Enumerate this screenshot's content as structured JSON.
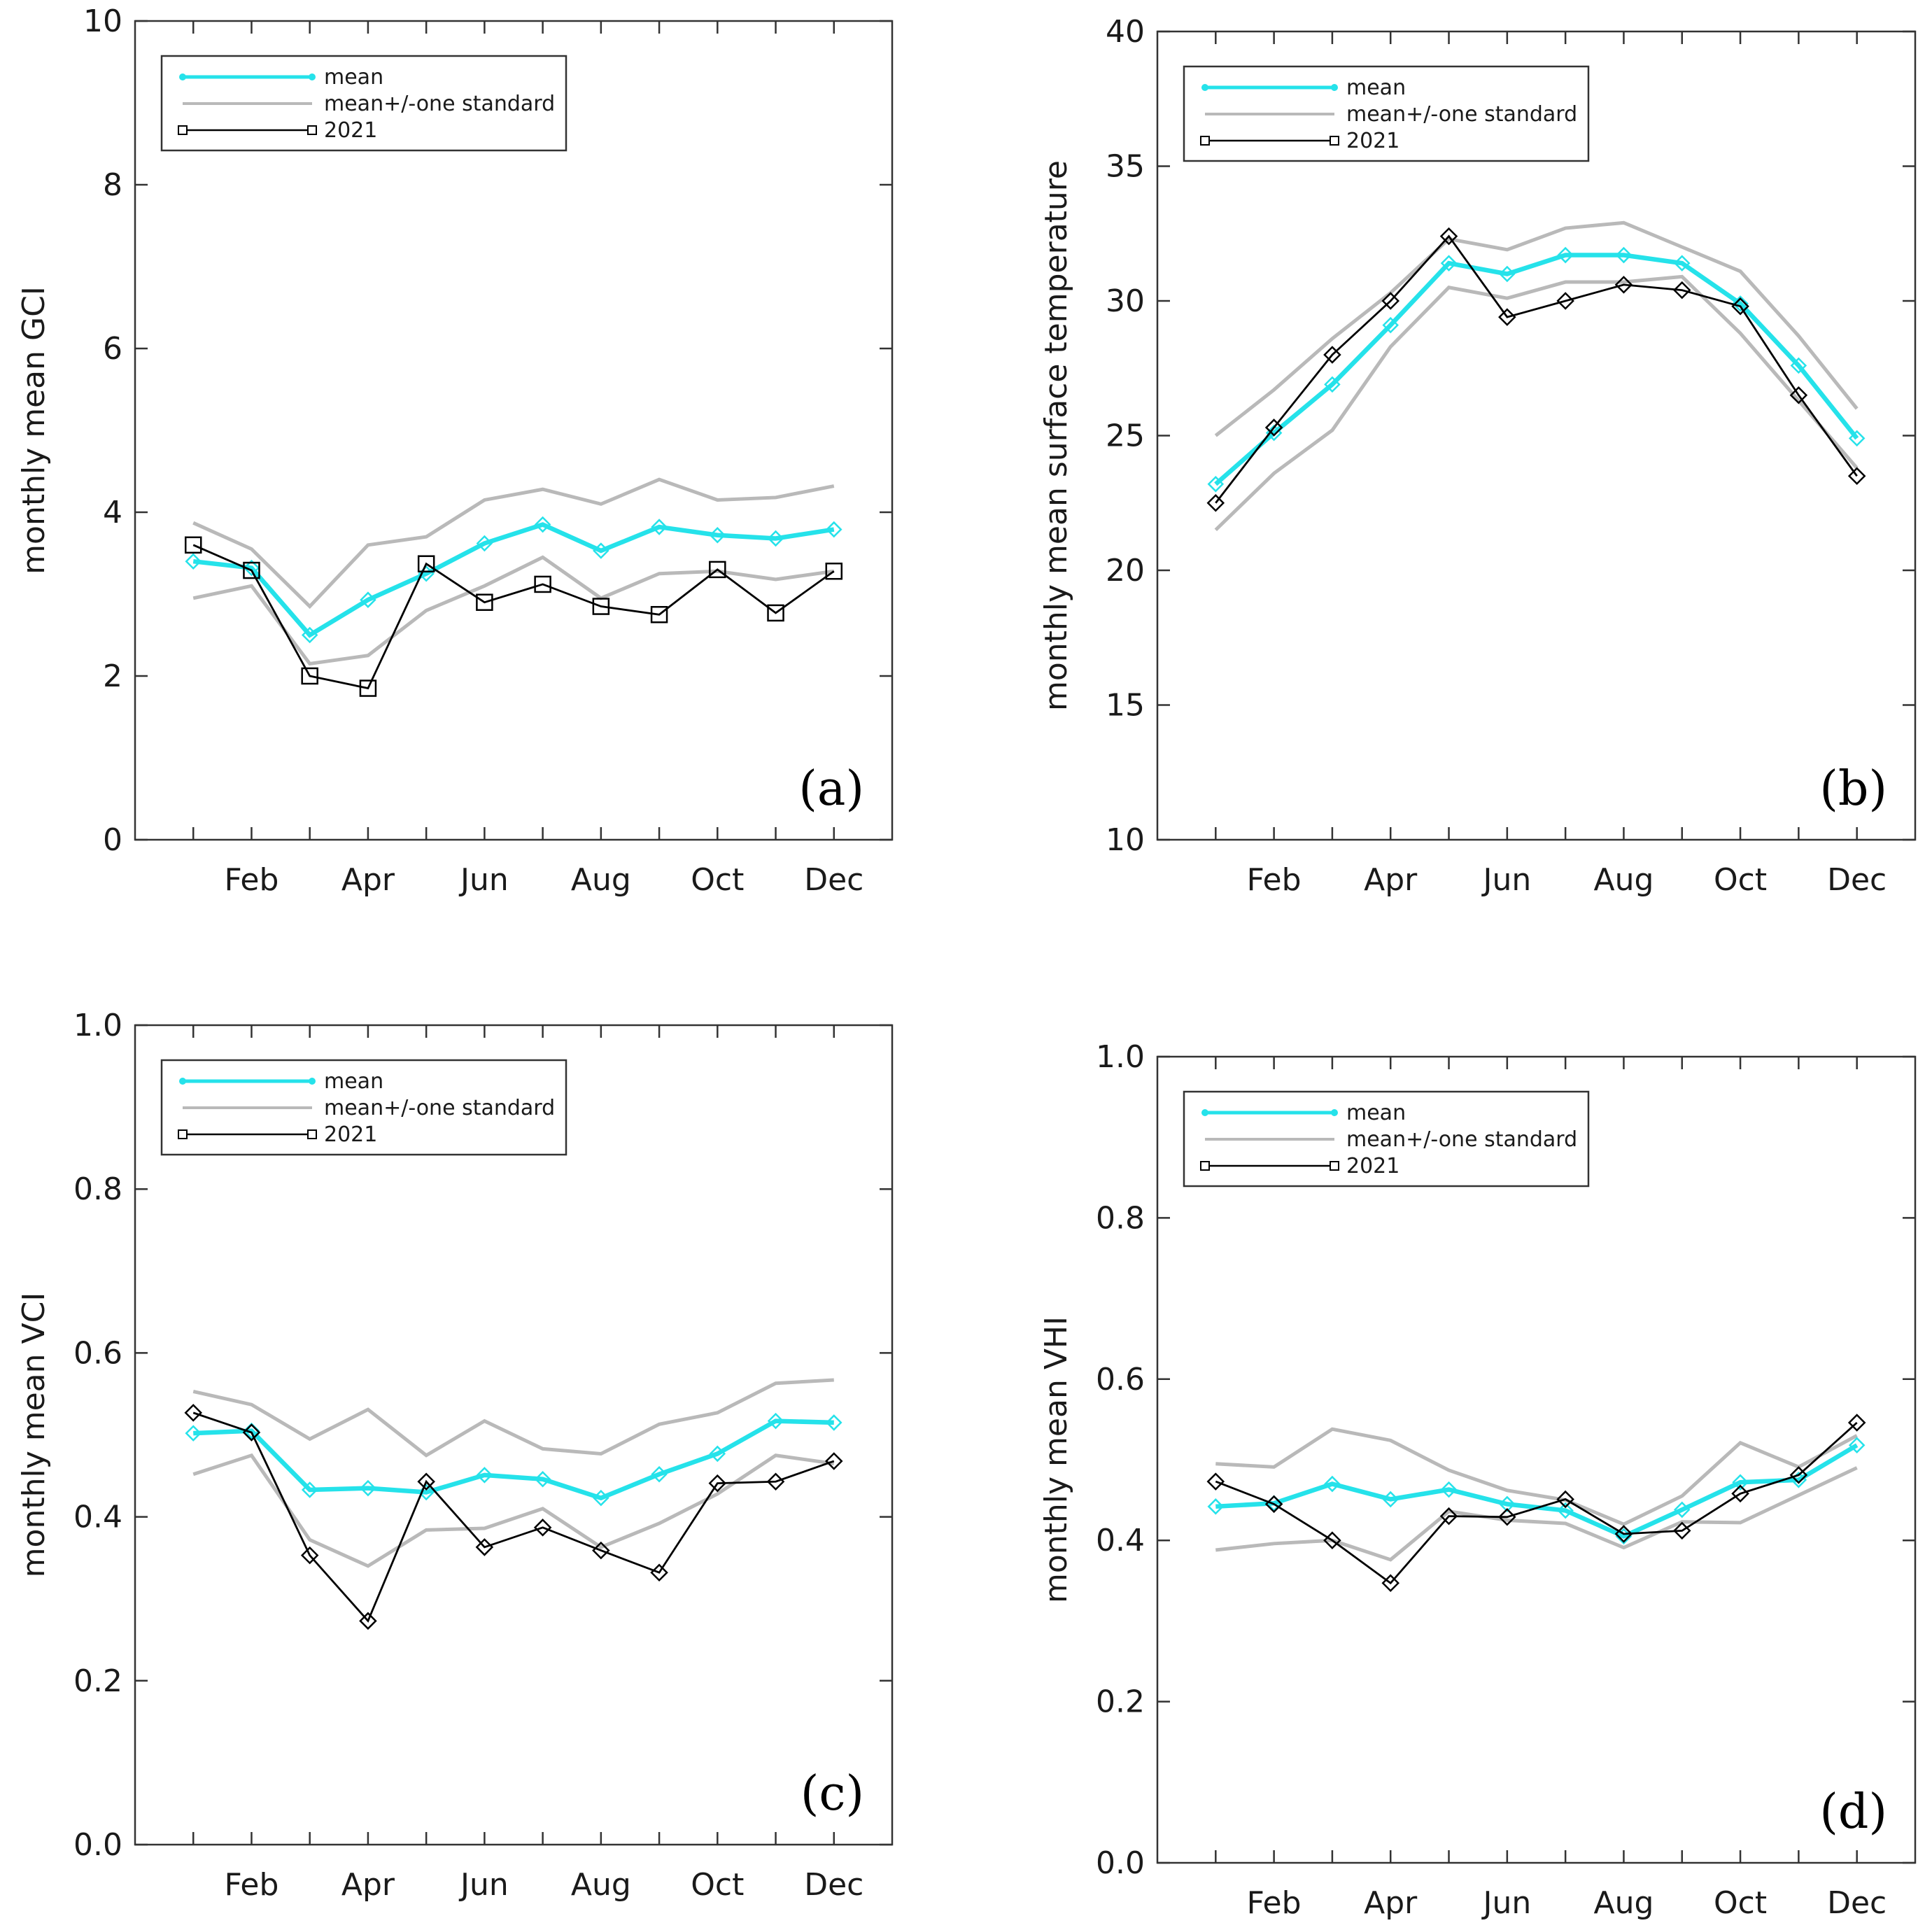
{
  "figure": {
    "colors": {
      "mean": "#25E2EA",
      "std": "#B9B9B9",
      "year": "#000000",
      "frame": "#333333"
    },
    "month_ticks": [
      "Feb",
      "Apr",
      "Jun",
      "Aug",
      "Oct",
      "Dec"
    ]
  },
  "chart_data": [
    {
      "id": "a",
      "type": "line",
      "panel_label": "(a)",
      "ylabel": "monthly mean GCI",
      "ylim": [
        0,
        10
      ],
      "yticks": [
        "0",
        "2",
        "4",
        "6",
        "8",
        "10"
      ],
      "xticks": [
        "Feb",
        "Apr",
        "Jun",
        "Aug",
        "Oct",
        "Dec"
      ],
      "x": [
        1,
        2,
        3,
        4,
        5,
        6,
        7,
        8,
        9,
        10,
        11,
        12
      ],
      "legend": {
        "mean": "mean",
        "std": "mean+/-one standard",
        "year": "2021"
      },
      "year_marker": "square",
      "series": [
        {
          "name": "mean",
          "values": [
            3.4,
            3.32,
            2.5,
            2.93,
            3.25,
            3.62,
            3.85,
            3.53,
            3.82,
            3.72,
            3.68,
            3.79
          ]
        },
        {
          "name": "mean+one standard",
          "values": [
            3.87,
            3.55,
            2.85,
            3.6,
            3.7,
            4.15,
            4.28,
            4.1,
            4.4,
            4.15,
            4.18,
            4.32
          ]
        },
        {
          "name": "mean-one standard",
          "values": [
            2.95,
            3.1,
            2.15,
            2.25,
            2.8,
            3.1,
            3.45,
            2.95,
            3.25,
            3.28,
            3.18,
            3.28
          ]
        },
        {
          "name": "2021",
          "values": [
            3.6,
            3.29,
            2.0,
            1.85,
            3.37,
            2.9,
            3.12,
            2.85,
            2.75,
            3.3,
            2.77,
            3.28
          ]
        }
      ]
    },
    {
      "id": "b",
      "type": "line",
      "panel_label": "(b)",
      "ylabel": "monthly mean surface temperature",
      "ylim": [
        10,
        40
      ],
      "yticks": [
        "10",
        "15",
        "20",
        "25",
        "30",
        "35",
        "40"
      ],
      "xticks": [
        "Feb",
        "Apr",
        "Jun",
        "Aug",
        "Oct",
        "Dec"
      ],
      "x": [
        1,
        2,
        3,
        4,
        5,
        6,
        7,
        8,
        9,
        10,
        11,
        12
      ],
      "legend": {
        "mean": "mean",
        "std": "mean+/-one standard",
        "year": "2021"
      },
      "year_marker": "diamond",
      "series": [
        {
          "name": "mean",
          "values": [
            23.2,
            25.1,
            26.9,
            29.1,
            31.4,
            31.0,
            31.7,
            31.7,
            31.4,
            29.9,
            27.6,
            24.9
          ]
        },
        {
          "name": "mean+one standard",
          "values": [
            25.0,
            26.7,
            28.6,
            30.3,
            32.3,
            31.9,
            32.7,
            32.9,
            32.0,
            31.1,
            28.7,
            26.0
          ]
        },
        {
          "name": "mean-one standard",
          "values": [
            21.5,
            23.6,
            25.2,
            28.3,
            30.5,
            30.1,
            30.7,
            30.7,
            30.9,
            28.8,
            26.3,
            23.8
          ]
        },
        {
          "name": "2021",
          "values": [
            22.5,
            25.3,
            28.0,
            30.0,
            32.4,
            29.4,
            30.0,
            30.6,
            30.4,
            29.8,
            26.5,
            23.5
          ]
        }
      ]
    },
    {
      "id": "c",
      "type": "line",
      "panel_label": "(c)",
      "ylabel": "monthly mean VCI",
      "ylim": [
        0,
        1
      ],
      "yticks": [
        "0.0",
        "0.2",
        "0.4",
        "0.6",
        "0.8",
        "1.0"
      ],
      "xticks": [
        "Feb",
        "Apr",
        "Jun",
        "Aug",
        "Oct",
        "Dec"
      ],
      "x": [
        1,
        2,
        3,
        4,
        5,
        6,
        7,
        8,
        9,
        10,
        11,
        12
      ],
      "legend": {
        "mean": "mean",
        "std": "mean+/-one standard",
        "year": "2021"
      },
      "year_marker": "diamond",
      "series": [
        {
          "name": "mean",
          "values": [
            0.502,
            0.505,
            0.433,
            0.435,
            0.43,
            0.451,
            0.446,
            0.423,
            0.452,
            0.477,
            0.517,
            0.515
          ]
        },
        {
          "name": "mean+one standard",
          "values": [
            0.553,
            0.537,
            0.495,
            0.531,
            0.475,
            0.517,
            0.483,
            0.477,
            0.513,
            0.527,
            0.563,
            0.567
          ]
        },
        {
          "name": "mean-one standard",
          "values": [
            0.452,
            0.475,
            0.372,
            0.34,
            0.384,
            0.386,
            0.41,
            0.363,
            0.392,
            0.428,
            0.475,
            0.465
          ]
        },
        {
          "name": "2021",
          "values": [
            0.527,
            0.503,
            0.353,
            0.273,
            0.443,
            0.363,
            0.387,
            0.359,
            0.332,
            0.441,
            0.443,
            0.468
          ]
        }
      ]
    },
    {
      "id": "d",
      "type": "line",
      "panel_label": "(d)",
      "ylabel": "monthly mean VHI",
      "ylim": [
        0,
        1
      ],
      "yticks": [
        "0.0",
        "0.2",
        "0.4",
        "0.6",
        "0.8",
        "1.0"
      ],
      "xticks": [
        "Feb",
        "Apr",
        "Jun",
        "Aug",
        "Oct",
        "Dec"
      ],
      "x": [
        1,
        2,
        3,
        4,
        5,
        6,
        7,
        8,
        9,
        10,
        11,
        12
      ],
      "legend": {
        "mean": "mean",
        "std": "mean+/-one standard",
        "year": "2021"
      },
      "year_marker": "diamond",
      "series": [
        {
          "name": "mean",
          "values": [
            0.442,
            0.446,
            0.47,
            0.451,
            0.463,
            0.445,
            0.437,
            0.405,
            0.438,
            0.472,
            0.475,
            0.518
          ]
        },
        {
          "name": "mean+one standard",
          "values": [
            0.495,
            0.491,
            0.538,
            0.524,
            0.487,
            0.462,
            0.45,
            0.42,
            0.455,
            0.521,
            0.491,
            0.53
          ]
        },
        {
          "name": "mean-one standard",
          "values": [
            0.388,
            0.396,
            0.4,
            0.376,
            0.436,
            0.425,
            0.421,
            0.391,
            0.423,
            0.422,
            0.456,
            0.49
          ]
        },
        {
          "name": "2021",
          "values": [
            0.473,
            0.445,
            0.4,
            0.347,
            0.43,
            0.429,
            0.451,
            0.408,
            0.412,
            0.458,
            0.481,
            0.546
          ]
        }
      ]
    }
  ]
}
